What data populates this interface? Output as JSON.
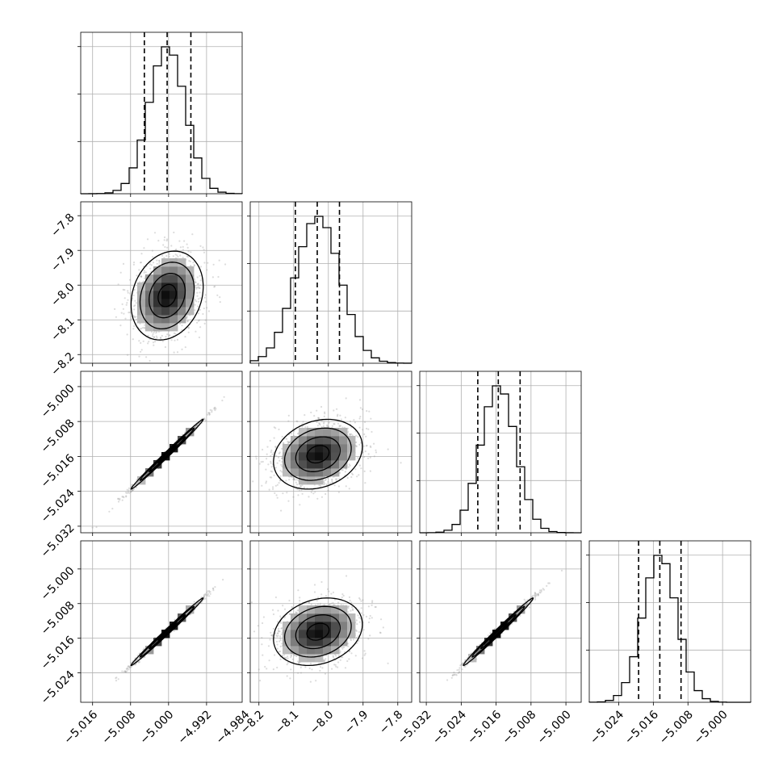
{
  "chart_data": {
    "type": "corner",
    "grid": true,
    "parameters": [
      {
        "range": [
          -5.0185,
          -4.9845
        ],
        "mean": -5.0003,
        "sd": 0.0038,
        "quantiles": [
          -5.0051,
          -5.0003,
          -4.9953
        ],
        "ticks": [
          -5.016,
          -5.008,
          -5.0,
          -4.992,
          -4.984
        ],
        "tick_labels": [
          "−5.016",
          "−5.008",
          "−5.000",
          "−4.992",
          "−4.984"
        ]
      },
      {
        "range": [
          -8.225,
          -7.76
        ],
        "mean": -8.03,
        "sd": 0.064,
        "quantiles": [
          -8.095,
          -8.032,
          -7.968
        ],
        "ticks": [
          -8.2,
          -8.1,
          -8.0,
          -7.9,
          -7.8
        ],
        "tick_labels": [
          "−8.2",
          "−8.1",
          "−8.0",
          "−7.9",
          "−7.8"
        ]
      },
      {
        "range": [
          -5.0335,
          -4.9965
        ],
        "mean": -5.0155,
        "sd": 0.004,
        "quantiles": [
          -5.0202,
          -5.0155,
          -5.0105
        ],
        "ticks": [
          -5.032,
          -5.024,
          -5.016,
          -5.008,
          -5.0
        ],
        "tick_labels": [
          "−5.032",
          "−5.024",
          "−5.016",
          "−5.008",
          "−5.000"
        ]
      },
      {
        "range": [
          -5.0308,
          -4.9935
        ],
        "mean": -5.0145,
        "sd": 0.0039,
        "quantiles": [
          -5.0194,
          -5.0145,
          -5.0096
        ],
        "ticks": [
          -5.024,
          -5.016,
          -5.008,
          -5.0
        ],
        "tick_labels": [
          "−5.024",
          "−5.016",
          "−5.008",
          "−5.000"
        ]
      }
    ],
    "correlations": [
      {
        "i": 1,
        "j": 0,
        "r": 0.2
      },
      {
        "i": 2,
        "j": 0,
        "r": 0.995
      },
      {
        "i": 2,
        "j": 1,
        "r": 0.22
      },
      {
        "i": 3,
        "j": 0,
        "r": 0.995
      },
      {
        "i": 3,
        "j": 1,
        "r": 0.22
      },
      {
        "i": 3,
        "j": 2,
        "r": 0.993
      }
    ],
    "histogram_bins": 20,
    "contour_levels": [
      0.5,
      1.0,
      1.5,
      2.0
    ],
    "colors": {
      "line": "#000000",
      "points": "#9a9a9a",
      "grid": "#b0b0b0"
    }
  }
}
